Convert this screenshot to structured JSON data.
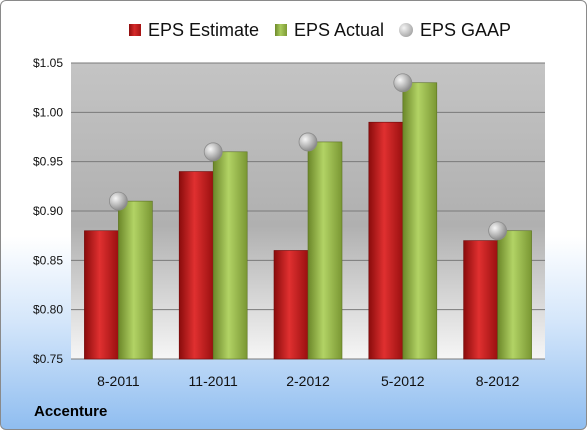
{
  "company": "Accenture",
  "colors": {
    "estimate": "#c21b1b",
    "actual": "#8fb146",
    "gaap": "#b8b8b8"
  },
  "chart_data": {
    "type": "bar",
    "title": "",
    "xlabel": "",
    "ylabel": "",
    "categories": [
      "8-2011",
      "11-2011",
      "2-2012",
      "5-2012",
      "8-2012"
    ],
    "series": [
      {
        "name": "EPS Estimate",
        "mark": "bar",
        "values": [
          0.88,
          0.94,
          0.86,
          0.99,
          0.87
        ]
      },
      {
        "name": "EPS Actual",
        "mark": "bar",
        "values": [
          0.91,
          0.96,
          0.97,
          1.03,
          0.88
        ]
      },
      {
        "name": "EPS GAAP",
        "mark": "marker",
        "values": [
          0.91,
          0.96,
          0.97,
          1.03,
          0.88
        ]
      }
    ],
    "ylim": [
      0.75,
      1.05
    ],
    "yticks": [
      "$0.75",
      "$0.80",
      "$0.85",
      "$0.90",
      "$0.95",
      "$1.00",
      "$1.05"
    ],
    "grid": true,
    "legend": "top"
  }
}
